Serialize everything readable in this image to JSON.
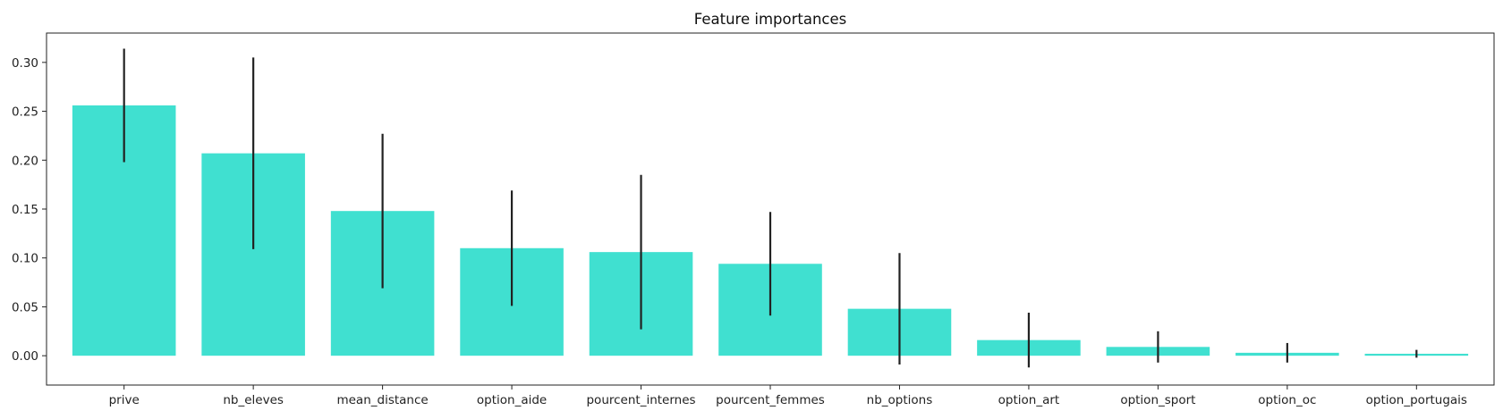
{
  "chart_data": {
    "type": "bar",
    "title": "Feature importances",
    "xlabel": "",
    "ylabel": "",
    "categories": [
      "prive",
      "nb_eleves",
      "mean_distance",
      "option_aide",
      "pourcent_internes",
      "pourcent_femmes",
      "nb_options",
      "option_art",
      "option_sport",
      "option_oc",
      "option_portugais"
    ],
    "values": [
      0.256,
      0.207,
      0.148,
      0.11,
      0.106,
      0.094,
      0.048,
      0.016,
      0.009,
      0.003,
      0.002
    ],
    "error": [
      0.058,
      0.098,
      0.079,
      0.059,
      0.079,
      0.053,
      0.057,
      0.028,
      0.016,
      0.01,
      0.004
    ],
    "ylim": [
      -0.03,
      0.33
    ],
    "yticks": [
      0.0,
      0.05,
      0.1,
      0.15,
      0.2,
      0.25,
      0.3
    ],
    "ytick_labels": [
      "0.00",
      "0.05",
      "0.10",
      "0.15",
      "0.20",
      "0.25",
      "0.30"
    ],
    "grid": false,
    "legend": "none",
    "bar_color": "#40e0d0",
    "error_color": "#222222"
  }
}
